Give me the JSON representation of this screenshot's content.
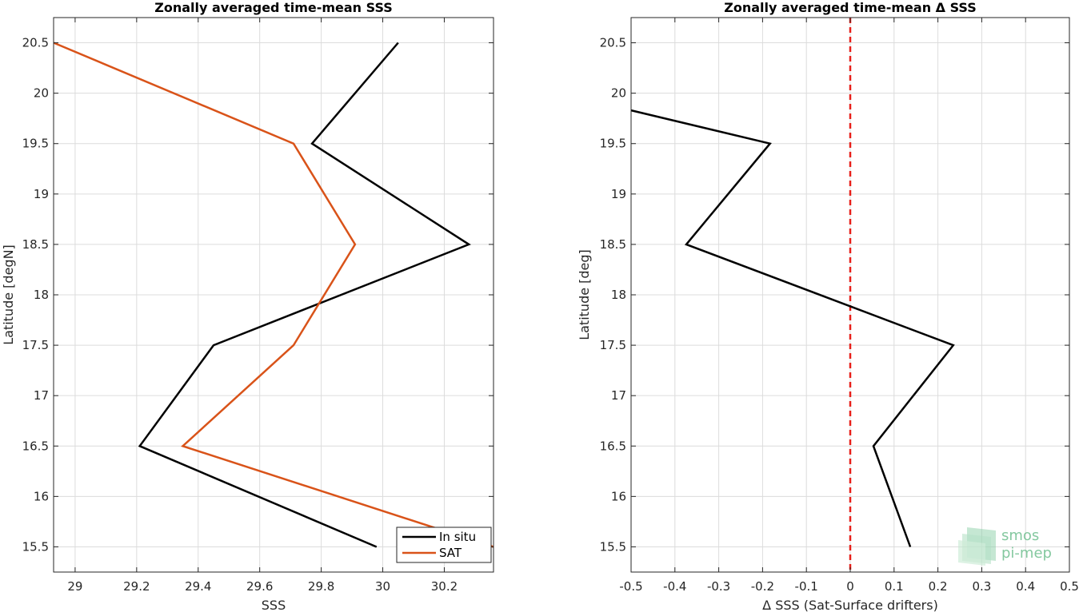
{
  "chart_data": [
    {
      "type": "line",
      "title": "Zonally averaged time-mean SSS",
      "xlabel": "SSS",
      "ylabel": "Latitude [degN]",
      "xlim": [
        28.93,
        30.36
      ],
      "ylim": [
        15.25,
        20.75
      ],
      "xticks": [
        "29",
        "29.2",
        "29.4",
        "29.6",
        "29.8",
        "30",
        "30.2"
      ],
      "xtick_values": [
        29,
        29.2,
        29.4,
        29.6,
        29.8,
        30,
        30.2
      ],
      "yticks": [
        "15.5",
        "16",
        "16.5",
        "17",
        "17.5",
        "18",
        "18.5",
        "19",
        "19.5",
        "20",
        "20.5"
      ],
      "ytick_values": [
        15.5,
        16,
        16.5,
        17,
        17.5,
        18,
        18.5,
        19,
        19.5,
        20,
        20.5
      ],
      "grid": true,
      "legend": "bottom-right",
      "series": [
        {
          "name": "In situ",
          "color": "#000000",
          "x": [
            29.98,
            29.21,
            29.45,
            30.28,
            29.77,
            30.05
          ],
          "y": [
            15.5,
            16.5,
            17.5,
            18.5,
            19.5,
            20.5
          ]
        },
        {
          "name": "SAT",
          "color": "#d95319",
          "x": [
            30.36,
            29.35,
            29.71,
            29.91,
            29.71,
            28.93
          ],
          "y": [
            15.5,
            16.5,
            17.5,
            18.5,
            19.5,
            20.5
          ]
        }
      ]
    },
    {
      "type": "line",
      "title": "Zonally averaged time-mean Δ SSS",
      "xlabel": "Δ SSS (Sat-Surface drifters)",
      "ylabel": "Latitude [deg]",
      "xlim": [
        -0.5,
        0.5
      ],
      "ylim": [
        15.25,
        20.75
      ],
      "xticks": [
        "-0.5",
        "-0.4",
        "-0.3",
        "-0.2",
        "-0.1",
        "0",
        "0.1",
        "0.2",
        "0.3",
        "0.4",
        "0.5"
      ],
      "xtick_values": [
        -0.5,
        -0.4,
        -0.3,
        -0.2,
        -0.1,
        0,
        0.1,
        0.2,
        0.3,
        0.4,
        0.5
      ],
      "yticks": [
        "15.5",
        "16",
        "16.5",
        "17",
        "17.5",
        "18",
        "18.5",
        "19",
        "19.5",
        "20",
        "20.5"
      ],
      "ytick_values": [
        15.5,
        16,
        16.5,
        17,
        17.5,
        18,
        18.5,
        19,
        19.5,
        20,
        20.5
      ],
      "grid": true,
      "reference_line": {
        "x": 0,
        "color": "#e8201a",
        "style": "dashed"
      },
      "series": [
        {
          "color": "#000000",
          "x": [
            0.137,
            0.053,
            0.235,
            -0.374,
            -0.183,
            -0.5
          ],
          "y": [
            15.5,
            16.5,
            17.5,
            18.5,
            19.5,
            19.83
          ]
        }
      ]
    }
  ],
  "watermark": {
    "line1": "smos",
    "line2": "pi-mep",
    "color": "#6fbf8f"
  }
}
